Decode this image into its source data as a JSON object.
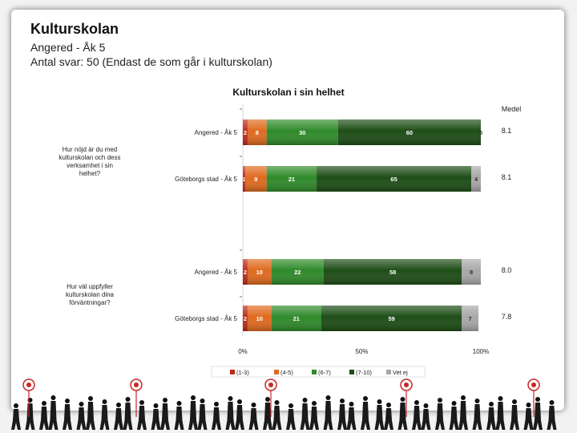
{
  "header": {
    "title": "Kulturskolan",
    "subtitle": "Angered - Åk 5",
    "respondents": "Antal svar: 50 (Endast de som går i kulturskolan)"
  },
  "chart_data": {
    "type": "bar",
    "orientation": "horizontal-stacked-percent",
    "title": "Kulturskolan i sin helhet",
    "mean_header": "Medel",
    "x_ticks": [
      "0%",
      "50%",
      "100%"
    ],
    "xlim": [
      0,
      100
    ],
    "legend_position": "bottom",
    "series": [
      {
        "name": "(1-3)",
        "color": "#c0281b"
      },
      {
        "name": "(4-5)",
        "color": "#e06a1e"
      },
      {
        "name": "(6-7)",
        "color": "#2f8a2a"
      },
      {
        "name": "(7-10)",
        "color": "#1d4d16"
      },
      {
        "name": "Vet ej",
        "color": "#a8a8a8"
      }
    ],
    "groups": [
      {
        "question": "Hur nöjd är du med kulturskolan och dess verksamhet i sin helhet?",
        "bars": [
          {
            "label": "Angered - Åk 5",
            "values": [
              2,
              8,
              30,
              60,
              0
            ],
            "texts": [
              "2",
              "8",
              "30",
              "60",
              "0"
            ],
            "mean": "8.1"
          },
          {
            "label": "Göteborgs stad - Åk 5",
            "values": [
              1,
              9,
              21,
              65,
              4
            ],
            "texts": [
              "1",
              "9",
              "21",
              "65",
              "4"
            ],
            "mean": "8.1"
          }
        ]
      },
      {
        "question": "Hur väl uppfyller kulturskolan dina förväntningar?",
        "bars": [
          {
            "label": "Angered - Åk 5",
            "values": [
              2,
              10,
              22,
              58,
              8
            ],
            "texts": [
              "2",
              "10",
              "22",
              "58",
              "8"
            ],
            "mean": "8.0"
          },
          {
            "label": "Göteborgs stad - Åk 5",
            "values": [
              2,
              10,
              21,
              59,
              7
            ],
            "texts": [
              "2",
              "10",
              "21",
              "59",
              "7"
            ],
            "mean": "7.8"
          }
        ]
      }
    ]
  }
}
